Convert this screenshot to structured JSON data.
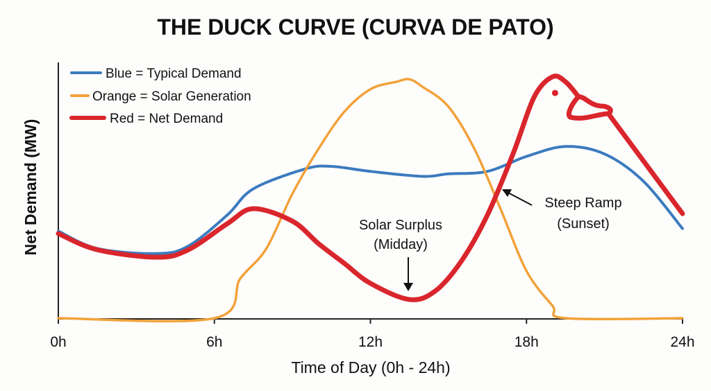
{
  "chart_data": {
    "type": "line",
    "title": "THE DUCK CURVE (CURVA DE PATO)",
    "xlabel": "Time of Day (0h - 24h)",
    "ylabel": "Net Demand (MW)",
    "xlim": [
      0,
      24
    ],
    "ylim": [
      0,
      100
    ],
    "x_ticks": [
      "0h",
      "6h",
      "12h",
      "18h",
      "24h"
    ],
    "x_tick_values": [
      0,
      6,
      12,
      18,
      24
    ],
    "grid": false,
    "legend_position": "top-left",
    "legend": [
      "Blue = Typical Demand",
      "Orange = Solar Generation",
      "Red = Net Demand"
    ],
    "series": [
      {
        "color": "#3b7bbf",
        "x": [
          0,
          1.5,
          3.8,
          5,
          6.5,
          7.5,
          9.5,
          10.5,
          12,
          14,
          15,
          16.5,
          18,
          19.5,
          21,
          22.5,
          24
        ],
        "y": [
          35,
          28,
          26,
          29,
          41.5,
          52,
          60,
          61,
          59,
          57,
          58,
          59,
          65,
          69,
          66,
          55,
          36
        ]
      },
      {
        "color": "#f2a23a",
        "x": [
          0,
          6,
          7,
          8,
          9,
          10,
          11,
          12,
          13,
          13.5,
          14,
          15,
          16,
          17,
          18,
          19,
          19.5,
          24
        ],
        "y": [
          0,
          0,
          16,
          28,
          50,
          68,
          83,
          92,
          95,
          96,
          93,
          85,
          68,
          44,
          19,
          5,
          0,
          0
        ]
      },
      {
        "color": "#d9262c",
        "x": [
          0,
          1.5,
          3.8,
          5,
          6.5,
          7.5,
          9,
          10,
          11,
          12,
          13.5,
          14.5,
          15.5,
          16.5,
          17.5,
          18.3,
          19,
          19.5,
          20
        ],
        "y": [
          34,
          27.5,
          24.5,
          27.5,
          38,
          44,
          39,
          30,
          22,
          14,
          7.5,
          11,
          23,
          41.5,
          66.5,
          89,
          97,
          95,
          89
        ],
        "tail": {
          "x": [
            21.2,
            24
          ],
          "y": [
            82.5,
            42
          ]
        }
      }
    ],
    "annotations": [
      {
        "lines": [
          "Solar Surplus",
          "(Midday)"
        ],
        "arrow_to": {
          "x": 13.5,
          "y": 9
        }
      },
      {
        "lines": [
          "Steep Ramp",
          "(Sunset)"
        ],
        "arrow_to": {
          "x": 17.1,
          "y": 52
        }
      }
    ]
  }
}
